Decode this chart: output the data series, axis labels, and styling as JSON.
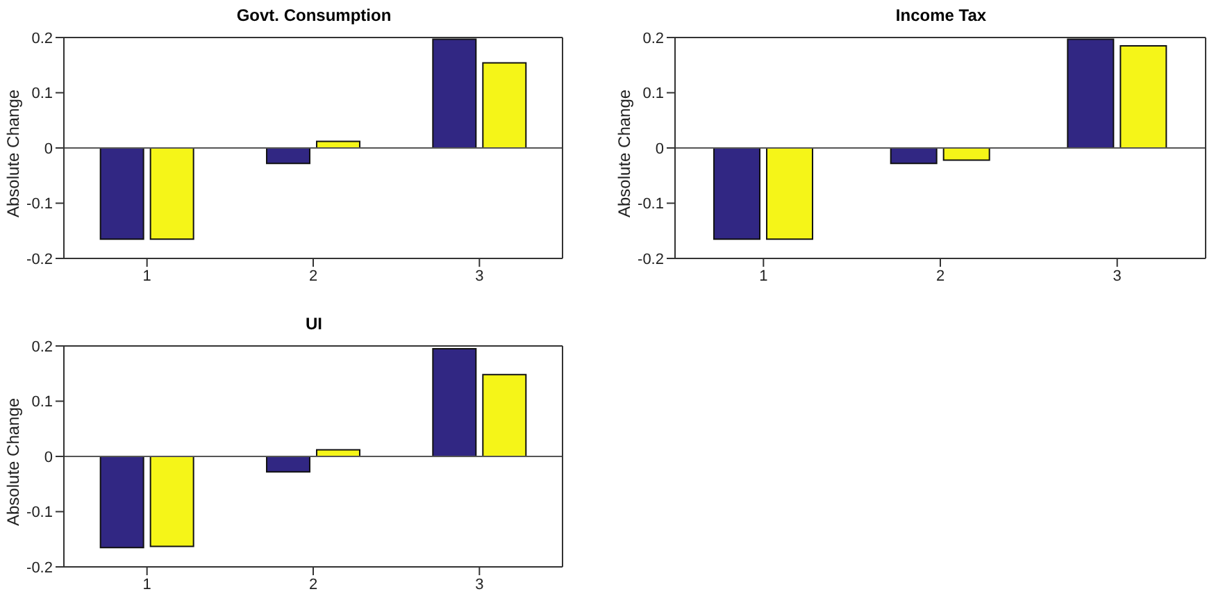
{
  "chart_data": [
    {
      "type": "bar",
      "title": "Govt. Consumption",
      "ylabel": "Absolute Change",
      "categories": [
        "1",
        "2",
        "3"
      ],
      "series": [
        {
          "color": "#312783",
          "values": [
            -0.165,
            -0.028,
            0.197
          ]
        },
        {
          "color": "#f5f518",
          "values": [
            -0.165,
            0.012,
            0.154
          ]
        }
      ],
      "ylim": [
        -0.2,
        0.2
      ],
      "yticks": [
        -0.2,
        -0.1,
        0,
        0.1,
        0.2
      ],
      "ref_lines": [
        {
          "axis": "y",
          "value": 0
        }
      ],
      "grid": false,
      "legend": false
    },
    {
      "type": "bar",
      "title": "Income Tax",
      "ylabel": "Absolute Change",
      "categories": [
        "1",
        "2",
        "3"
      ],
      "series": [
        {
          "color": "#312783",
          "values": [
            -0.165,
            -0.028,
            0.197
          ]
        },
        {
          "color": "#f5f518",
          "values": [
            -0.165,
            -0.022,
            0.185
          ]
        }
      ],
      "ylim": [
        -0.2,
        0.2
      ],
      "yticks": [
        -0.2,
        -0.1,
        0,
        0.1,
        0.2
      ],
      "ref_lines": [
        {
          "axis": "y",
          "value": 0
        }
      ],
      "grid": false,
      "legend": false
    },
    {
      "type": "bar",
      "title": "UI",
      "ylabel": "Absolute Change",
      "categories": [
        "1",
        "2",
        "3"
      ],
      "series": [
        {
          "color": "#312783",
          "values": [
            -0.165,
            -0.028,
            0.195
          ]
        },
        {
          "color": "#f5f518",
          "values": [
            -0.163,
            0.012,
            0.148
          ]
        }
      ],
      "ylim": [
        -0.2,
        0.2
      ],
      "yticks": [
        -0.2,
        -0.1,
        0,
        0.1,
        0.2
      ],
      "ref_lines": [
        {
          "axis": "y",
          "value": 0
        }
      ],
      "grid": false,
      "legend": false
    }
  ]
}
